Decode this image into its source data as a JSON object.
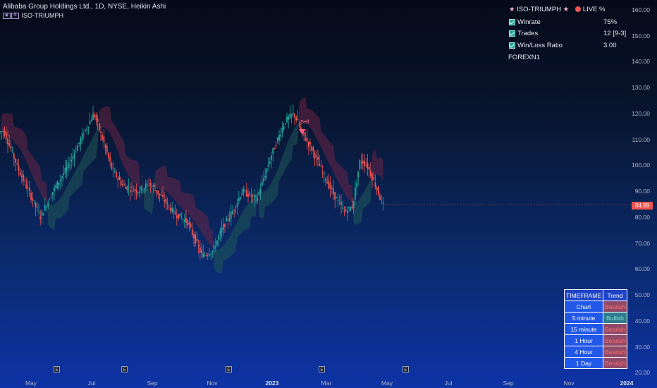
{
  "header": {
    "title": "Alibaba Group Holdings Ltd., 1D, NYSE, Heikin Ashi",
    "indicator_name": "ISO-TRIUMPH",
    "indicator_icons": [
      "eye-icon",
      "settings-icon"
    ]
  },
  "stats": {
    "title": "ISO-TRIUMPH",
    "live_label": "LIVE %",
    "rows": [
      {
        "label": "Winrate",
        "value": "75%"
      },
      {
        "label": "Trades",
        "value": "12 [9-3]"
      },
      {
        "label": "Win/Loss Ratio",
        "value": "3.00"
      }
    ],
    "footer": "FOREXN1"
  },
  "y_axis": {
    "ticks": [
      "160.00",
      "150.00",
      "140.00",
      "130.00",
      "120.00",
      "110.00",
      "100.00",
      "90.00",
      "80.00",
      "70.00",
      "60.00",
      "50.00",
      "40.00",
      "30.00",
      "20.00"
    ],
    "current_price": "84.69"
  },
  "x_axis": {
    "ticks": [
      {
        "label": "May",
        "bold": false
      },
      {
        "label": "Jul",
        "bold": false
      },
      {
        "label": "Sep",
        "bold": false
      },
      {
        "label": "Nov",
        "bold": false
      },
      {
        "label": "2023",
        "bold": true
      },
      {
        "label": "Mar",
        "bold": false
      },
      {
        "label": "May",
        "bold": false
      },
      {
        "label": "Jul",
        "bold": false
      },
      {
        "label": "Sep",
        "bold": false
      },
      {
        "label": "Nov",
        "bold": false
      },
      {
        "label": "2024",
        "bold": true
      }
    ]
  },
  "earnings_marker": "E",
  "signal": {
    "label": "Sell"
  },
  "trend_table": {
    "headers": [
      "TIMEFRAME",
      "Trend"
    ],
    "rows": [
      {
        "tf": "Chart",
        "trend": "Bearish"
      },
      {
        "tf": "5 minute",
        "trend": "Bullish"
      },
      {
        "tf": "15 minute",
        "trend": "Bearish"
      },
      {
        "tf": "1 Hour",
        "trend": "Bearish"
      },
      {
        "tf": "4 Hour",
        "trend": "Bearish"
      },
      {
        "tf": "1 Day",
        "trend": "Bearish"
      }
    ]
  },
  "colors": {
    "bull": "#26a69a",
    "bear": "#ef5350",
    "bull_cloud": "#1f5a57",
    "bear_cloud": "#6b2545"
  },
  "chart_data": {
    "type": "candlestick",
    "symbol": "BABA",
    "ylim": [
      20,
      160
    ],
    "last_price": 84.69,
    "close_path": [
      {
        "date": "2022-04-05",
        "close": 113
      },
      {
        "date": "2022-04-20",
        "close": 98
      },
      {
        "date": "2022-05-05",
        "close": 86
      },
      {
        "date": "2022-05-12",
        "close": 80
      },
      {
        "date": "2022-05-25",
        "close": 90
      },
      {
        "date": "2022-06-10",
        "close": 100
      },
      {
        "date": "2022-06-25",
        "close": 112
      },
      {
        "date": "2022-07-06",
        "close": 120
      },
      {
        "date": "2022-07-15",
        "close": 110
      },
      {
        "date": "2022-07-25",
        "close": 98
      },
      {
        "date": "2022-08-05",
        "close": 92
      },
      {
        "date": "2022-08-20",
        "close": 90
      },
      {
        "date": "2022-09-01",
        "close": 93
      },
      {
        "date": "2022-09-15",
        "close": 87
      },
      {
        "date": "2022-09-25",
        "close": 82
      },
      {
        "date": "2022-10-10",
        "close": 78
      },
      {
        "date": "2022-10-25",
        "close": 65
      },
      {
        "date": "2022-11-05",
        "close": 67
      },
      {
        "date": "2022-11-15",
        "close": 76
      },
      {
        "date": "2022-11-25",
        "close": 82
      },
      {
        "date": "2022-12-05",
        "close": 90
      },
      {
        "date": "2022-12-20",
        "close": 87
      },
      {
        "date": "2023-01-05",
        "close": 105
      },
      {
        "date": "2023-01-18",
        "close": 117
      },
      {
        "date": "2023-01-27",
        "close": 120
      },
      {
        "date": "2023-02-05",
        "close": 112
      },
      {
        "date": "2023-02-15",
        "close": 106
      },
      {
        "date": "2023-02-28",
        "close": 95
      },
      {
        "date": "2023-03-10",
        "close": 88
      },
      {
        "date": "2023-03-20",
        "close": 82
      },
      {
        "date": "2023-03-28",
        "close": 84
      },
      {
        "date": "2023-04-05",
        "close": 102
      },
      {
        "date": "2023-04-12",
        "close": 100
      },
      {
        "date": "2023-04-20",
        "close": 93
      },
      {
        "date": "2023-04-28",
        "close": 84.69
      }
    ]
  }
}
